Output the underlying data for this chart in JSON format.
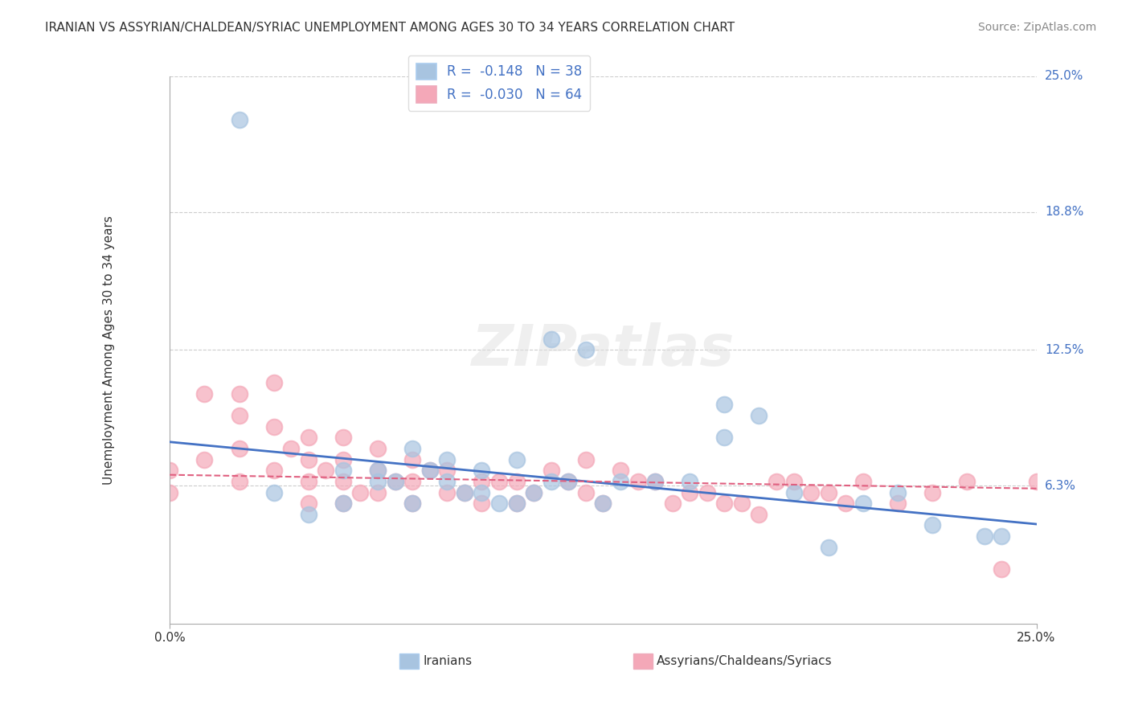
{
  "title": "IRANIAN VS ASSYRIAN/CHALDEAN/SYRIAC UNEMPLOYMENT AMONG AGES 30 TO 34 YEARS CORRELATION CHART",
  "source": "Source: ZipAtlas.com",
  "ylabel": "Unemployment Among Ages 30 to 34 years",
  "xlim": [
    0,
    0.25
  ],
  "ylim": [
    0,
    0.25
  ],
  "x_tick_labels": [
    "0.0%",
    "25.0%"
  ],
  "y_tick_labels": [
    "25.0%",
    "18.8%",
    "12.5%",
    "6.3%"
  ],
  "y_tick_positions": [
    0.25,
    0.188,
    0.125,
    0.063
  ],
  "legend_R_iranian": "-0.148",
  "legend_N_iranian": "38",
  "legend_R_assyrian": "-0.030",
  "legend_N_assyrian": "64",
  "iranian_color": "#a8c4e0",
  "assyrian_color": "#f4a8b8",
  "iranian_line_color": "#4472c4",
  "assyrian_line_color": "#e06080",
  "background_color": "#ffffff",
  "grid_color": "#cccccc",
  "iranian_points_x": [
    0.02,
    0.03,
    0.04,
    0.05,
    0.05,
    0.06,
    0.06,
    0.07,
    0.07,
    0.08,
    0.08,
    0.09,
    0.09,
    0.1,
    0.1,
    0.11,
    0.11,
    0.12,
    0.13,
    0.14,
    0.15,
    0.16,
    0.17,
    0.18,
    0.19,
    0.2,
    0.22,
    0.24,
    0.16,
    0.21,
    0.065,
    0.075,
    0.085,
    0.095,
    0.105,
    0.115,
    0.125,
    0.235
  ],
  "iranian_points_y": [
    0.23,
    0.06,
    0.05,
    0.07,
    0.055,
    0.065,
    0.07,
    0.08,
    0.055,
    0.075,
    0.065,
    0.07,
    0.06,
    0.055,
    0.075,
    0.065,
    0.13,
    0.125,
    0.065,
    0.065,
    0.065,
    0.085,
    0.095,
    0.06,
    0.035,
    0.055,
    0.045,
    0.04,
    0.1,
    0.06,
    0.065,
    0.07,
    0.06,
    0.055,
    0.06,
    0.065,
    0.055,
    0.04
  ],
  "assyrian_points_x": [
    0.0,
    0.0,
    0.01,
    0.01,
    0.02,
    0.02,
    0.02,
    0.02,
    0.03,
    0.03,
    0.03,
    0.04,
    0.04,
    0.04,
    0.04,
    0.05,
    0.05,
    0.05,
    0.05,
    0.06,
    0.06,
    0.06,
    0.07,
    0.07,
    0.07,
    0.08,
    0.08,
    0.09,
    0.09,
    0.1,
    0.1,
    0.11,
    0.12,
    0.12,
    0.13,
    0.14,
    0.15,
    0.16,
    0.17,
    0.18,
    0.19,
    0.2,
    0.21,
    0.22,
    0.23,
    0.24,
    0.25,
    0.035,
    0.045,
    0.055,
    0.065,
    0.075,
    0.085,
    0.095,
    0.105,
    0.115,
    0.125,
    0.135,
    0.145,
    0.155,
    0.165,
    0.175,
    0.185,
    0.195
  ],
  "assyrian_points_y": [
    0.07,
    0.06,
    0.105,
    0.075,
    0.105,
    0.095,
    0.08,
    0.065,
    0.11,
    0.09,
    0.07,
    0.085,
    0.075,
    0.065,
    0.055,
    0.085,
    0.075,
    0.065,
    0.055,
    0.08,
    0.07,
    0.06,
    0.075,
    0.065,
    0.055,
    0.07,
    0.06,
    0.065,
    0.055,
    0.055,
    0.065,
    0.07,
    0.075,
    0.06,
    0.07,
    0.065,
    0.06,
    0.055,
    0.05,
    0.065,
    0.06,
    0.065,
    0.055,
    0.06,
    0.065,
    0.025,
    0.065,
    0.08,
    0.07,
    0.06,
    0.065,
    0.07,
    0.06,
    0.065,
    0.06,
    0.065,
    0.055,
    0.065,
    0.055,
    0.06,
    0.055,
    0.065,
    0.06,
    0.055
  ]
}
